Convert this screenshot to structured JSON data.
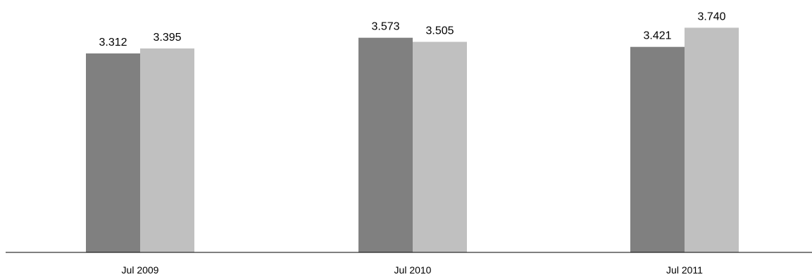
{
  "chart_data": {
    "type": "bar",
    "categories": [
      "Jul 2009",
      "Jul 2010",
      "Jul 2011"
    ],
    "series": [
      {
        "values": [
          3.312,
          3.573,
          3.421
        ],
        "labels": [
          "3.312",
          "3.573",
          "3.421"
        ],
        "color": "#808080"
      },
      {
        "values": [
          3.395,
          3.505,
          3.74
        ],
        "labels": [
          "3.395",
          "3.505",
          "3.740"
        ],
        "color": "#c0c0c0"
      }
    ],
    "ylim": [
      0,
      3.9
    ],
    "grid": false,
    "legend": "none",
    "axis_color": "#000000"
  }
}
